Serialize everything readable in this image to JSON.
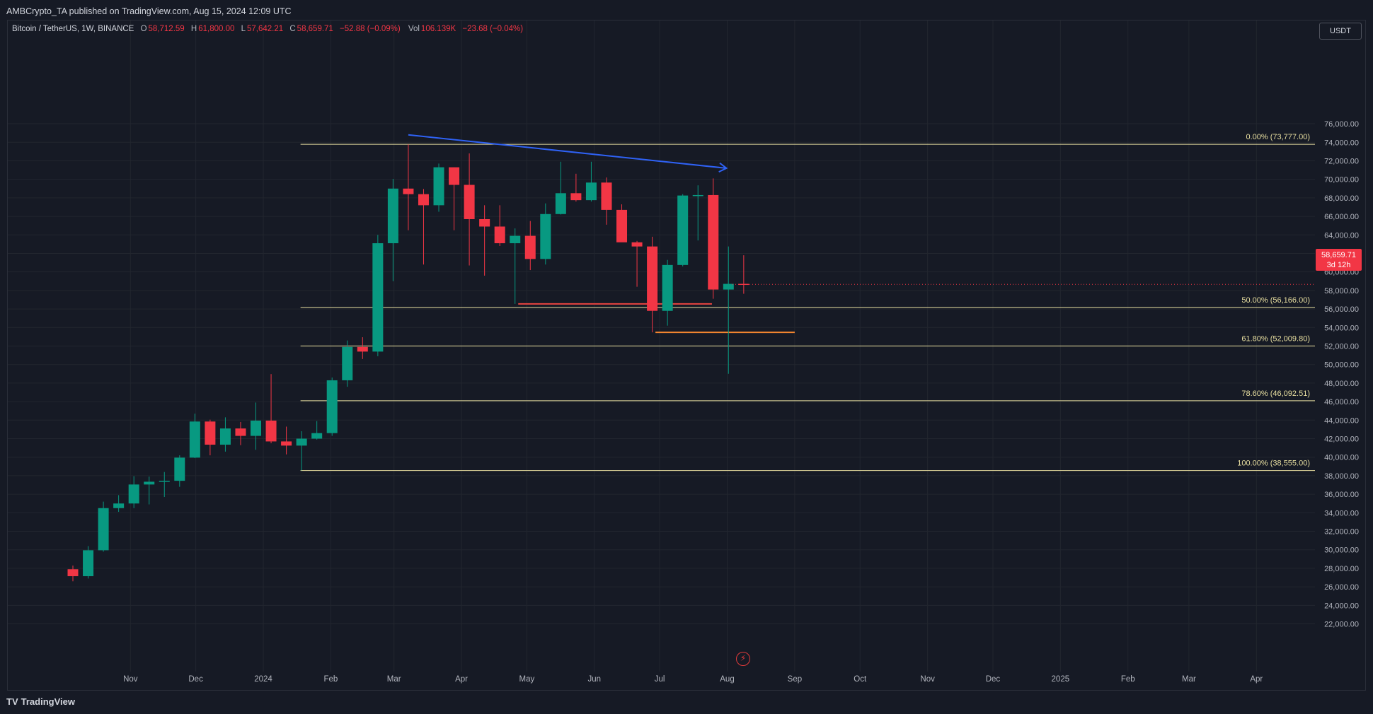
{
  "header": {
    "caption": "AMBCrypto_TA published on TradingView.com, Aug 15, 2024 12:09 UTC"
  },
  "legend": {
    "symbol": "Bitcoin / TetherUS, 1W, BINANCE",
    "o_label": "O",
    "o_value": "58,712.59",
    "h_label": "H",
    "h_value": "61,800.00",
    "l_label": "L",
    "l_value": "57,642.21",
    "c_label": "C",
    "c_value": "58,659.71",
    "change": "−52.88 (−0.09%)",
    "vol_label": "Vol",
    "vol_value": "106.139K",
    "vol_change": "−23.68 (−0.04%)"
  },
  "currency_button": "USDT",
  "price_tag": {
    "price": "58,659.71",
    "countdown": "3d 12h"
  },
  "brand": {
    "icon": "TV",
    "name": "TradingView"
  },
  "lightning_icon": "⚡",
  "colors": {
    "up": "#089981",
    "down": "#f23645",
    "fib": "#e8dfa0",
    "trend": "#2f62f5",
    "support_red": "#e8433f",
    "support_orange": "#f5862f",
    "axis_text": "#b2b5be",
    "grid": "#22262f"
  },
  "chart_data": {
    "type": "candlestick",
    "interval": "1W",
    "y_ticks": [
      22000,
      24000,
      26000,
      28000,
      30000,
      32000,
      34000,
      36000,
      38000,
      40000,
      42000,
      44000,
      46000,
      48000,
      50000,
      52000,
      54000,
      56000,
      58000,
      60000,
      62000,
      64000,
      66000,
      68000,
      70000,
      72000,
      74000,
      76000
    ],
    "y_tick_labels": [
      "22,000.00",
      "24,000.00",
      "26,000.00",
      "28,000.00",
      "30,000.00",
      "32,000.00",
      "34,000.00",
      "36,000.00",
      "38,000.00",
      "40,000.00",
      "42,000.00",
      "44,000.00",
      "46,000.00",
      "48,000.00",
      "50,000.00",
      "52,000.00",
      "54,000.00",
      "56,000.00",
      "58,000.00",
      "60,000.00",
      "62,000.00",
      "64,000.00",
      "66,000.00",
      "68,000.00",
      "70,000.00",
      "72,000.00",
      "74,000.00",
      "76,000.00"
    ],
    "x_labels": [
      {
        "date": "2023-11-01",
        "label": "Nov"
      },
      {
        "date": "2023-12-01",
        "label": "Dec"
      },
      {
        "date": "2024-01-01",
        "label": "2024"
      },
      {
        "date": "2024-02-01",
        "label": "Feb"
      },
      {
        "date": "2024-03-01",
        "label": "Mar"
      },
      {
        "date": "2024-04-01",
        "label": "Apr"
      },
      {
        "date": "2024-05-01",
        "label": "May"
      },
      {
        "date": "2024-06-01",
        "label": "Jun"
      },
      {
        "date": "2024-07-01",
        "label": "Jul"
      },
      {
        "date": "2024-08-01",
        "label": "Aug"
      },
      {
        "date": "2024-09-01",
        "label": "Sep"
      },
      {
        "date": "2024-10-01",
        "label": "Oct"
      },
      {
        "date": "2024-11-01",
        "label": "Nov"
      },
      {
        "date": "2024-12-01",
        "label": "Dec"
      },
      {
        "date": "2025-01-01",
        "label": "2025"
      },
      {
        "date": "2025-02-01",
        "label": "Feb"
      },
      {
        "date": "2025-03-01",
        "label": "Mar"
      },
      {
        "date": "2025-04-01",
        "label": "Apr"
      }
    ],
    "candles": [
      {
        "date": "2023-10-09",
        "o": 27900,
        "h": 28300,
        "l": 26600,
        "c": 27150
      },
      {
        "date": "2023-10-16",
        "o": 27150,
        "h": 30400,
        "l": 26900,
        "c": 29950
      },
      {
        "date": "2023-10-23",
        "o": 29950,
        "h": 35200,
        "l": 29800,
        "c": 34500
      },
      {
        "date": "2023-10-30",
        "o": 34500,
        "h": 35900,
        "l": 34100,
        "c": 35000
      },
      {
        "date": "2023-11-06",
        "o": 35000,
        "h": 37950,
        "l": 34500,
        "c": 37050
      },
      {
        "date": "2023-11-13",
        "o": 37050,
        "h": 37900,
        "l": 34900,
        "c": 37350
      },
      {
        "date": "2023-11-20",
        "o": 37350,
        "h": 38400,
        "l": 35700,
        "c": 37450
      },
      {
        "date": "2023-11-27",
        "o": 37450,
        "h": 40200,
        "l": 36800,
        "c": 39950
      },
      {
        "date": "2023-12-04",
        "o": 39950,
        "h": 44700,
        "l": 39900,
        "c": 43850
      },
      {
        "date": "2023-12-11",
        "o": 43850,
        "h": 44050,
        "l": 40200,
        "c": 41350
      },
      {
        "date": "2023-12-18",
        "o": 41350,
        "h": 44300,
        "l": 40600,
        "c": 43100
      },
      {
        "date": "2023-12-25",
        "o": 43100,
        "h": 43800,
        "l": 41300,
        "c": 42300
      },
      {
        "date": "2024-01-01",
        "o": 42300,
        "h": 45900,
        "l": 40800,
        "c": 43950
      },
      {
        "date": "2024-01-08",
        "o": 43950,
        "h": 48970,
        "l": 41500,
        "c": 41700
      },
      {
        "date": "2024-01-15",
        "o": 41700,
        "h": 43300,
        "l": 40300,
        "c": 41250
      },
      {
        "date": "2024-01-22",
        "o": 41250,
        "h": 42800,
        "l": 38560,
        "c": 42000
      },
      {
        "date": "2024-01-29",
        "o": 42000,
        "h": 43900,
        "l": 41900,
        "c": 42600
      },
      {
        "date": "2024-02-05",
        "o": 42600,
        "h": 48600,
        "l": 42300,
        "c": 48300
      },
      {
        "date": "2024-02-12",
        "o": 48300,
        "h": 52600,
        "l": 47600,
        "c": 51900
      },
      {
        "date": "2024-02-19",
        "o": 51900,
        "h": 52950,
        "l": 50600,
        "c": 51400
      },
      {
        "date": "2024-02-26",
        "o": 51400,
        "h": 64000,
        "l": 50900,
        "c": 63100
      },
      {
        "date": "2024-03-04",
        "o": 63100,
        "h": 70050,
        "l": 59000,
        "c": 69000
      },
      {
        "date": "2024-03-11",
        "o": 69000,
        "h": 73777,
        "l": 64500,
        "c": 68400
      },
      {
        "date": "2024-03-18",
        "o": 68400,
        "h": 68950,
        "l": 60800,
        "c": 67200
      },
      {
        "date": "2024-03-25",
        "o": 67200,
        "h": 71700,
        "l": 66500,
        "c": 71300
      },
      {
        "date": "2024-04-01",
        "o": 71300,
        "h": 71300,
        "l": 64500,
        "c": 69400
      },
      {
        "date": "2024-04-08",
        "o": 69400,
        "h": 72800,
        "l": 60700,
        "c": 65700
      },
      {
        "date": "2024-04-15",
        "o": 65700,
        "h": 67200,
        "l": 59600,
        "c": 64900
      },
      {
        "date": "2024-04-22",
        "o": 64900,
        "h": 67200,
        "l": 62800,
        "c": 63100
      },
      {
        "date": "2024-04-29",
        "o": 63100,
        "h": 64700,
        "l": 56550,
        "c": 63900
      },
      {
        "date": "2024-05-06",
        "o": 63900,
        "h": 65500,
        "l": 60200,
        "c": 61400
      },
      {
        "date": "2024-05-13",
        "o": 61400,
        "h": 67400,
        "l": 60800,
        "c": 66250
      },
      {
        "date": "2024-05-20",
        "o": 66250,
        "h": 71900,
        "l": 66200,
        "c": 68500
      },
      {
        "date": "2024-05-27",
        "o": 68500,
        "h": 70600,
        "l": 67600,
        "c": 67750
      },
      {
        "date": "2024-06-03",
        "o": 67750,
        "h": 71900,
        "l": 67600,
        "c": 69650
      },
      {
        "date": "2024-06-10",
        "o": 69650,
        "h": 70200,
        "l": 65100,
        "c": 66700
      },
      {
        "date": "2024-06-17",
        "o": 66700,
        "h": 67300,
        "l": 63300,
        "c": 63200
      },
      {
        "date": "2024-06-24",
        "o": 63200,
        "h": 63350,
        "l": 58400,
        "c": 62750
      },
      {
        "date": "2024-07-01",
        "o": 62750,
        "h": 63800,
        "l": 53480,
        "c": 55800
      },
      {
        "date": "2024-07-08",
        "o": 55800,
        "h": 61300,
        "l": 54200,
        "c": 60750
      },
      {
        "date": "2024-07-15",
        "o": 60750,
        "h": 68400,
        "l": 60600,
        "c": 68250
      },
      {
        "date": "2024-07-22",
        "o": 68250,
        "h": 69350,
        "l": 63400,
        "c": 68300
      },
      {
        "date": "2024-07-29",
        "o": 68300,
        "h": 70100,
        "l": 57100,
        "c": 58100
      },
      {
        "date": "2024-08-05",
        "o": 58100,
        "h": 62750,
        "l": 49000,
        "c": 58712
      },
      {
        "date": "2024-08-12",
        "o": 58712.59,
        "h": 61800,
        "l": 57642.21,
        "c": 58659.71
      }
    ],
    "fib_levels": [
      {
        "ratio": "0.00%",
        "price": 73777,
        "label": "0.00% (73,777.00)"
      },
      {
        "ratio": "50.00%",
        "price": 56166,
        "label": "50.00% (56,166.00)"
      },
      {
        "ratio": "61.80%",
        "price": 52009.8,
        "label": "61.80% (52,009.80)"
      },
      {
        "ratio": "78.60%",
        "price": 46092.51,
        "label": "78.60% (46,092.51)"
      },
      {
        "ratio": "100.00%",
        "price": 38555,
        "label": "100.00% (38,555.00)"
      }
    ],
    "fib_start_date": "2024-01-22",
    "trendline": {
      "start_date": "2024-03-11",
      "start_price": 74800,
      "end_date": "2024-08-01",
      "end_price": 71200
    },
    "support_lines": [
      {
        "color": "support_red",
        "start_date": "2024-04-29",
        "end_date": "2024-07-25",
        "price": 56550
      },
      {
        "color": "support_orange",
        "start_date": "2024-07-01",
        "end_date": "2024-09-01",
        "price": 53480
      }
    ]
  }
}
